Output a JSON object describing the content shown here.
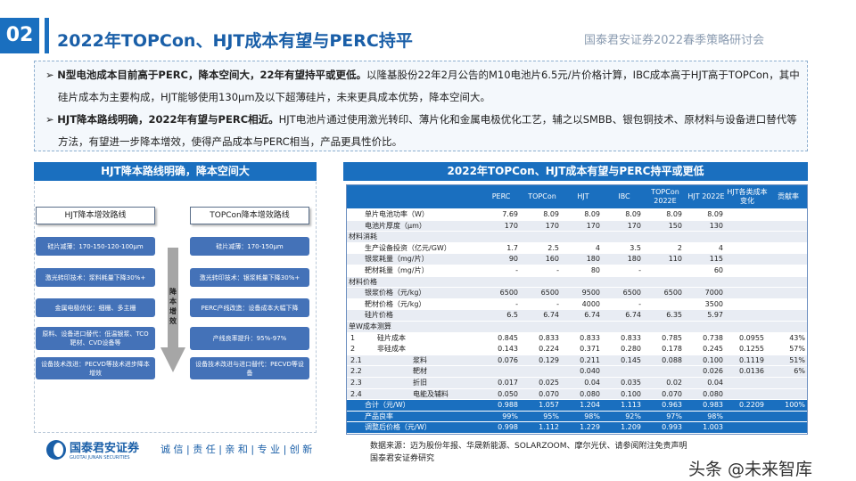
{
  "header": {
    "number": "02",
    "title": "2022年TOPCon、HJT成本有望与PERC持平",
    "conference": "国泰君安证券2022春季策略研讨会"
  },
  "bullets": [
    {
      "bold": "N型电池成本目前高于PERC，降本空间大，22年有望持平或更低。",
      "text": "以隆基股份22年2月公告的M10电池片6.5元/片价格计算，IBC成本高于HJT高于TOPCon，其中硅片成本为主要构成，HJT能够使用130μm及以下超薄硅片，未来更具成本优势，降本空间大。"
    },
    {
      "bold": "HJT降本路线明确，2022年有望与PERC相近。",
      "text": "HJT电池片通过使用激光转印、薄片化和金属电极优化工艺，辅之以SMBB、银包铜技术、原材料与设备进口替代等方法，有望进一步降本增效，使得产品成本与PERC相当，产品更具性价比。"
    }
  ],
  "left_panel": {
    "title": "HJT降本路线明确，降本空间大",
    "arrow_label": "降本增效",
    "hjt": {
      "title": "HJT降本增效路线",
      "items": [
        "硅片减薄：170-150-120-100μm",
        "激光转印技术：浆料耗量下降30%+",
        "金属电极优化：细栅、多主栅",
        "原料、设备进口替代：低温银浆、TCO靶材、CVD设备等",
        "设备技术改进：PECVD等技术进步降本增效"
      ]
    },
    "topcon": {
      "title": "TOPCon降本增效路线",
      "items": [
        "硅片减薄：170-150μm",
        "激光转印技术：银浆耗量下降30%+",
        "PERC产线改造：设备成本大幅下降",
        "产线良率提升：95%-97%",
        "设备技术改进与进口替代：PECVD等设备"
      ]
    }
  },
  "table": {
    "title": "2022年TOPCon、HJT成本有望与PERC持平或更低",
    "columns": [
      "",
      "PERC",
      "TOPCon",
      "HJT",
      "IBC",
      "TOPCon 2022E",
      "HJT 2022E",
      "HJT各类成本变化",
      "贡献率"
    ],
    "rows": [
      {
        "type": "w",
        "cells": [
          "单片电池功率（W）",
          "7.69",
          "8.09",
          "8.09",
          "8.09",
          "8.09",
          "8.09",
          "",
          ""
        ]
      },
      {
        "type": "g",
        "cells": [
          "电池片厚度（μm）",
          "170",
          "170",
          "170",
          "170",
          "150",
          "130",
          "",
          ""
        ]
      },
      {
        "type": "sec",
        "cells": [
          "材料消耗"
        ]
      },
      {
        "type": "w",
        "cells": [
          "生产设备投资（亿元/GW）",
          "1.7",
          "2.5",
          "4",
          "3.5",
          "2",
          "4",
          "",
          ""
        ]
      },
      {
        "type": "g",
        "cells": [
          "银浆耗量（mg/片）",
          "90",
          "160",
          "180",
          "180",
          "110",
          "115",
          "",
          ""
        ]
      },
      {
        "type": "w",
        "cells": [
          "靶材耗量（mg/片）",
          "-",
          "-",
          "80",
          "-",
          "",
          "60",
          "",
          ""
        ]
      },
      {
        "type": "sec",
        "cells": [
          "材料价格"
        ]
      },
      {
        "type": "g",
        "cells": [
          "银浆价格（元/kg）",
          "6500",
          "6500",
          "9500",
          "6500",
          "6500",
          "7000",
          "",
          ""
        ]
      },
      {
        "type": "w",
        "cells": [
          "靶材价格（元/kg）",
          "-",
          "-",
          "4000",
          "-",
          "",
          "3500",
          "",
          ""
        ]
      },
      {
        "type": "g",
        "cells": [
          "硅片价格",
          "6.5",
          "6.74",
          "6.74",
          "6.74",
          "6.35",
          "5.97",
          "",
          ""
        ]
      },
      {
        "type": "sec",
        "cells": [
          "单W成本测算"
        ]
      },
      {
        "type": "sub",
        "n": "1",
        "cells": [
          "硅片成本",
          "0.845",
          "0.833",
          "0.833",
          "0.833",
          "0.785",
          "0.738",
          "0.0955",
          "43%"
        ]
      },
      {
        "type": "sub",
        "n": "2",
        "cells": [
          "非硅成本",
          "0.143",
          "0.224",
          "0.371",
          "0.280",
          "0.178",
          "0.245",
          "0.1255",
          "57%"
        ]
      },
      {
        "type": "sub",
        "n": "2.1",
        "cells": [
          "浆料",
          "0.076",
          "0.129",
          "0.211",
          "0.145",
          "0.088",
          "0.100",
          "0.1119",
          "51%"
        ]
      },
      {
        "type": "sub",
        "n": "2.2",
        "cells": [
          "靶材",
          "",
          "",
          "0.040",
          "",
          "",
          "0.026",
          "0.0136",
          "6%"
        ]
      },
      {
        "type": "sub",
        "n": "2.3",
        "cells": [
          "折旧",
          "0.017",
          "0.025",
          "0.04",
          "0.035",
          "0.02",
          "0.04",
          "",
          ""
        ]
      },
      {
        "type": "sub",
        "n": "2.4",
        "cells": [
          "电能及辅料",
          "0.050",
          "0.070",
          "0.080",
          "0.100",
          "0.070",
          "0.080",
          "",
          ""
        ]
      },
      {
        "type": "tot",
        "cells": [
          "合计（元/W）",
          "0.988",
          "1.057",
          "1.204",
          "1.113",
          "0.963",
          "0.983",
          "0.2209",
          "100%"
        ]
      },
      {
        "type": "tot",
        "cells": [
          "产品良率",
          "99%",
          "95%",
          "98%",
          "92%",
          "97%",
          "98%",
          "",
          ""
        ]
      },
      {
        "type": "tot",
        "cells": [
          "调整后价格（元/W）",
          "0.998",
          "1.112",
          "1.229",
          "1.209",
          "0.993",
          "1.003",
          "",
          ""
        ]
      }
    ]
  },
  "footer": {
    "logo_name": "国泰君安证券",
    "logo_sub": "GUOTAI JUNAN SECURITIES",
    "slogan": "诚 信 | 责 任 | 亲 和 | 专 业 | 创 新",
    "source_line1": "数据来源：迈为股份年报、华晟新能源、SOLARZOOM、摩尔光伏、请参阅附注免责声明",
    "source_line2": "国泰君安证券研究",
    "watermark": "头条 @未来智库"
  },
  "colors": {
    "brand": "#1a6fbf",
    "box": "#4472b8"
  }
}
